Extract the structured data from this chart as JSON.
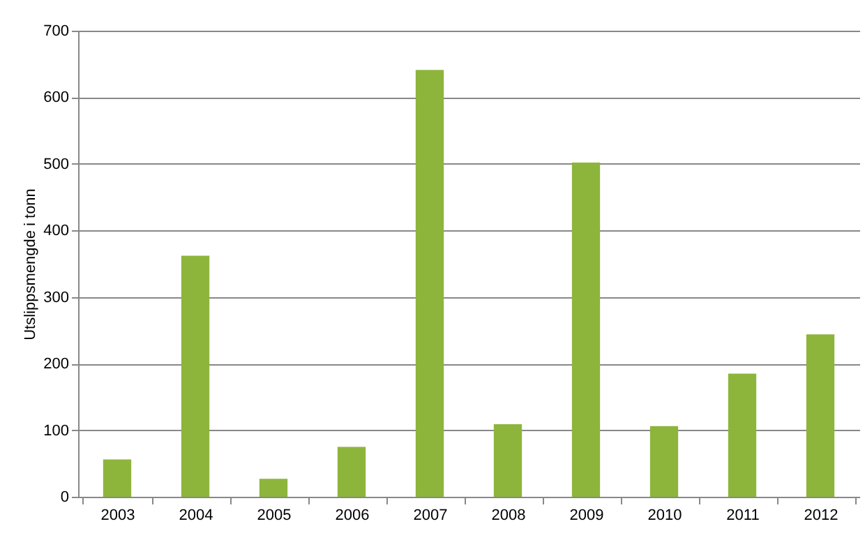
{
  "chart_data": {
    "type": "bar",
    "ylabel": "Utslippsmengde i tonn",
    "categories": [
      "2003",
      "2004",
      "2005",
      "2006",
      "2007",
      "2008",
      "2009",
      "2010",
      "2011",
      "2012"
    ],
    "values": [
      56,
      362,
      27,
      75,
      641,
      109,
      502,
      106,
      185,
      244
    ],
    "color": "#8db53c",
    "ylim": [
      0,
      700
    ],
    "yticks": [
      0,
      100,
      200,
      300,
      400,
      500,
      600,
      700
    ],
    "grid": "y"
  }
}
